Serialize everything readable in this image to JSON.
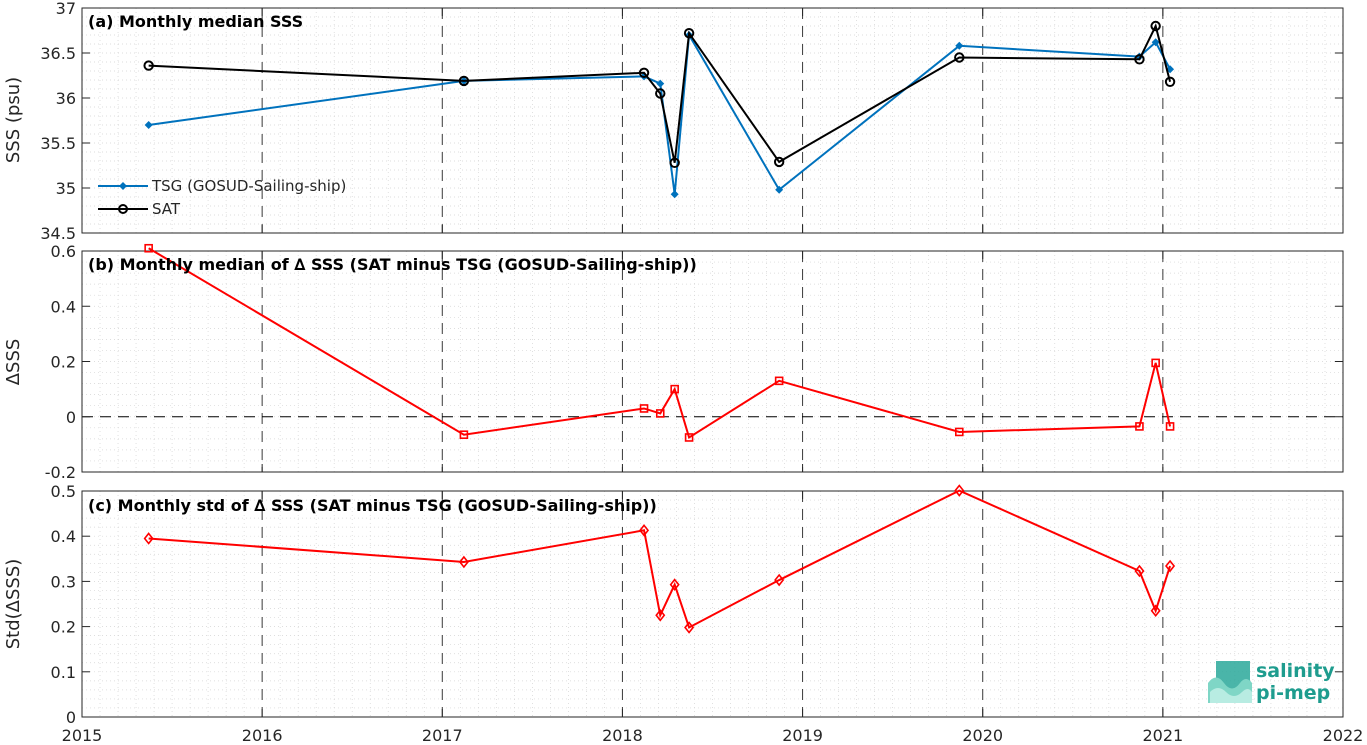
{
  "colors": {
    "tsg": "#0072bd",
    "sat": "#000000",
    "delta": "#ff0000",
    "grid_dash": "#3a3a3a"
  },
  "logo": {
    "line1": "salinity",
    "line2": "pi-mep"
  },
  "x_ticks": [
    "2015",
    "2016",
    "2017",
    "2018",
    "2019",
    "2020",
    "2021",
    "2022"
  ],
  "chart_data": [
    {
      "type": "line",
      "title": "(a) Monthly median SSS",
      "ylabel": "SSS (psu)",
      "xlim": [
        2015,
        2022
      ],
      "ylim": [
        34.5,
        37
      ],
      "y_ticks": [
        "34.5",
        "35",
        "35.5",
        "36",
        "36.5",
        "37"
      ],
      "legend": "bottom-left",
      "grid": true,
      "x": [
        2015.37,
        2017.12,
        2018.12,
        2018.21,
        2018.29,
        2018.37,
        2018.87,
        2019.87,
        2020.87,
        2020.96,
        2021.04
      ],
      "series": [
        {
          "name": "TSG (GOSUD-Sailing-ship)",
          "marker": "diamond-filled",
          "values": [
            35.7,
            36.19,
            36.24,
            36.16,
            34.93,
            36.7,
            34.98,
            36.58,
            36.46,
            36.62,
            36.32
          ]
        },
        {
          "name": "SAT",
          "marker": "circle",
          "values": [
            36.36,
            36.19,
            36.28,
            36.05,
            35.28,
            36.72,
            35.29,
            36.45,
            36.43,
            36.8,
            36.18
          ]
        }
      ]
    },
    {
      "type": "line",
      "title": "(b) Monthly median of ∆ SSS (SAT minus TSG (GOSUD-Sailing-ship))",
      "ylabel": "ΔSSS",
      "xlim": [
        2015,
        2022
      ],
      "ylim": [
        -0.2,
        0.6
      ],
      "y_ticks": [
        "-0.2",
        "0",
        "0.2",
        "0.4",
        "0.6"
      ],
      "zero_line": true,
      "grid": true,
      "x": [
        2015.37,
        2017.12,
        2018.12,
        2018.21,
        2018.29,
        2018.37,
        2018.87,
        2019.87,
        2020.87,
        2020.96,
        2021.04
      ],
      "series": [
        {
          "marker": "square",
          "values": [
            0.61,
            -0.065,
            0.03,
            0.012,
            0.1,
            -0.075,
            0.13,
            -0.055,
            -0.035,
            0.195,
            -0.035
          ]
        }
      ]
    },
    {
      "type": "line",
      "title": "(c) Monthly std of ∆ SSS (SAT minus TSG (GOSUD-Sailing-ship))",
      "ylabel": "Std(ΔSSS)",
      "xlim": [
        2015,
        2022
      ],
      "ylim": [
        0,
        0.5
      ],
      "y_ticks": [
        "0",
        "0.1",
        "0.2",
        "0.3",
        "0.4",
        "0.5"
      ],
      "grid": true,
      "x": [
        2015.37,
        2017.12,
        2018.12,
        2018.21,
        2018.29,
        2018.37,
        2018.87,
        2019.87,
        2020.87,
        2020.96,
        2021.04
      ],
      "series": [
        {
          "marker": "diamond",
          "values": [
            0.395,
            0.343,
            0.413,
            0.225,
            0.293,
            0.198,
            0.303,
            0.501,
            0.323,
            0.235,
            0.334
          ]
        }
      ]
    }
  ]
}
